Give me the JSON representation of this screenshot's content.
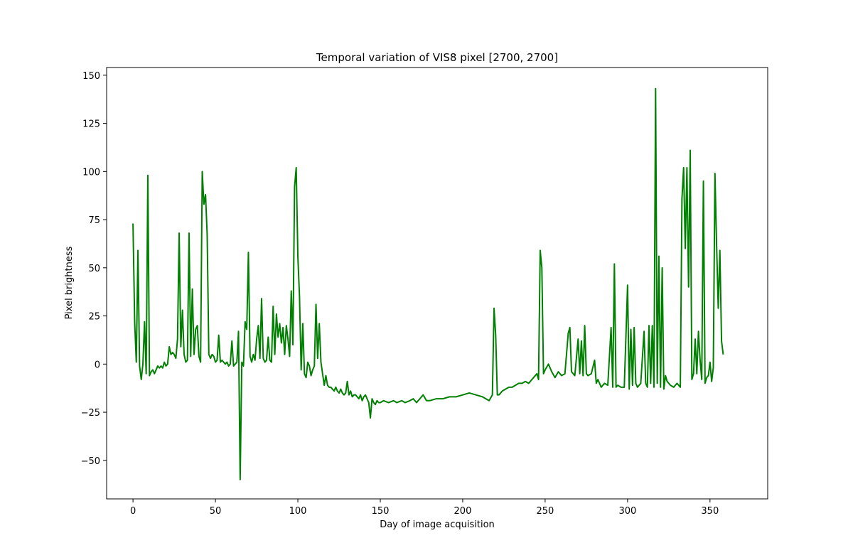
{
  "chart_data": {
    "type": "line",
    "title": "Temporal variation of VIS8 pixel [2700, 2700]",
    "xlabel": "Day of image acquisition",
    "ylabel": "Pixel brightness",
    "xlim": [
      -16,
      385
    ],
    "ylim": [
      -70,
      154
    ],
    "xticks": [
      0,
      50,
      100,
      150,
      200,
      250,
      300,
      350
    ],
    "yticks": [
      -50,
      -25,
      0,
      25,
      50,
      75,
      100,
      125,
      150
    ],
    "grid": false,
    "legend": "none",
    "series": [
      {
        "color": "#008000",
        "points": [
          [
            0,
            73
          ],
          [
            1,
            22
          ],
          [
            2,
            1
          ],
          [
            3,
            59
          ],
          [
            4,
            -1
          ],
          [
            5,
            -8
          ],
          [
            6,
            0
          ],
          [
            7,
            22
          ],
          [
            8,
            -5
          ],
          [
            9,
            98
          ],
          [
            10,
            -6
          ],
          [
            11,
            -4
          ],
          [
            12,
            -3
          ],
          [
            13,
            -5
          ],
          [
            14,
            -3
          ],
          [
            15,
            -1
          ],
          [
            16,
            -2
          ],
          [
            17,
            -1
          ],
          [
            18,
            -2
          ],
          [
            19,
            1
          ],
          [
            20,
            -1
          ],
          [
            21,
            0
          ],
          [
            22,
            9
          ],
          [
            23,
            5
          ],
          [
            24,
            6
          ],
          [
            25,
            5
          ],
          [
            26,
            3
          ],
          [
            27,
            13
          ],
          [
            28,
            68
          ],
          [
            29,
            9
          ],
          [
            30,
            28
          ],
          [
            31,
            5
          ],
          [
            32,
            1
          ],
          [
            33,
            2
          ],
          [
            34,
            68
          ],
          [
            35,
            4
          ],
          [
            36,
            39
          ],
          [
            37,
            5
          ],
          [
            38,
            18
          ],
          [
            39,
            20
          ],
          [
            40,
            4
          ],
          [
            41,
            1
          ],
          [
            42,
            100
          ],
          [
            43,
            83
          ],
          [
            44,
            88
          ],
          [
            45,
            67
          ],
          [
            46,
            5
          ],
          [
            47,
            3
          ],
          [
            48,
            5
          ],
          [
            49,
            4
          ],
          [
            50,
            1
          ],
          [
            51,
            2
          ],
          [
            52,
            15
          ],
          [
            53,
            1
          ],
          [
            54,
            2
          ],
          [
            55,
            1
          ],
          [
            56,
            0
          ],
          [
            57,
            1
          ],
          [
            58,
            -1
          ],
          [
            59,
            0
          ],
          [
            60,
            12
          ],
          [
            61,
            -1
          ],
          [
            62,
            0
          ],
          [
            63,
            1
          ],
          [
            64,
            17
          ],
          [
            65,
            -60
          ],
          [
            66,
            1
          ],
          [
            67,
            -1
          ],
          [
            68,
            22
          ],
          [
            69,
            18
          ],
          [
            70,
            58
          ],
          [
            71,
            4
          ],
          [
            72,
            1
          ],
          [
            73,
            5
          ],
          [
            74,
            2
          ],
          [
            75,
            13
          ],
          [
            76,
            20
          ],
          [
            77,
            3
          ],
          [
            78,
            34
          ],
          [
            79,
            3
          ],
          [
            80,
            1
          ],
          [
            81,
            2
          ],
          [
            82,
            14
          ],
          [
            83,
            2
          ],
          [
            84,
            1
          ],
          [
            85,
            30
          ],
          [
            86,
            5
          ],
          [
            87,
            26
          ],
          [
            88,
            14
          ],
          [
            89,
            21
          ],
          [
            90,
            11
          ],
          [
            91,
            19
          ],
          [
            92,
            5
          ],
          [
            93,
            20
          ],
          [
            94,
            13
          ],
          [
            95,
            4
          ],
          [
            96,
            38
          ],
          [
            97,
            10
          ],
          [
            98,
            92
          ],
          [
            99,
            102
          ],
          [
            100,
            56
          ],
          [
            101,
            35
          ],
          [
            102,
            -3
          ],
          [
            103,
            21
          ],
          [
            104,
            -5
          ],
          [
            105,
            -7
          ],
          [
            106,
            1
          ],
          [
            107,
            -1
          ],
          [
            108,
            -6
          ],
          [
            109,
            -3
          ],
          [
            110,
            -1
          ],
          [
            111,
            31
          ],
          [
            112,
            3
          ],
          [
            113,
            21
          ],
          [
            114,
            1
          ],
          [
            115,
            -5
          ],
          [
            116,
            -11
          ],
          [
            117,
            -6
          ],
          [
            118,
            -11
          ],
          [
            119,
            -12
          ],
          [
            120,
            -12
          ],
          [
            121,
            -13
          ],
          [
            122,
            -14
          ],
          [
            123,
            -12
          ],
          [
            124,
            -14
          ],
          [
            125,
            -15
          ],
          [
            126,
            -13
          ],
          [
            127,
            -15
          ],
          [
            128,
            -16
          ],
          [
            129,
            -15
          ],
          [
            130,
            -9
          ],
          [
            131,
            -16
          ],
          [
            132,
            -14
          ],
          [
            133,
            -17
          ],
          [
            134,
            -16
          ],
          [
            135,
            -16
          ],
          [
            136,
            -17
          ],
          [
            137,
            -18
          ],
          [
            138,
            -16
          ],
          [
            139,
            -19
          ],
          [
            140,
            -17
          ],
          [
            141,
            -16
          ],
          [
            142,
            -18
          ],
          [
            143,
            -20
          ],
          [
            144,
            -28
          ],
          [
            145,
            -18
          ],
          [
            146,
            -20
          ],
          [
            147,
            -21
          ],
          [
            148,
            -19
          ],
          [
            149,
            -20
          ],
          [
            150,
            -20
          ],
          [
            152,
            -19
          ],
          [
            155,
            -20
          ],
          [
            158,
            -19
          ],
          [
            160,
            -20
          ],
          [
            163,
            -19
          ],
          [
            165,
            -20
          ],
          [
            168,
            -19
          ],
          [
            170,
            -18
          ],
          [
            172,
            -20
          ],
          [
            174,
            -18
          ],
          [
            176,
            -16
          ],
          [
            178,
            -19
          ],
          [
            180,
            -19
          ],
          [
            184,
            -18
          ],
          [
            188,
            -18
          ],
          [
            192,
            -17
          ],
          [
            196,
            -17
          ],
          [
            200,
            -16
          ],
          [
            204,
            -15
          ],
          [
            208,
            -16
          ],
          [
            212,
            -17
          ],
          [
            214,
            -18
          ],
          [
            216,
            -19
          ],
          [
            218,
            -16
          ],
          [
            219,
            29
          ],
          [
            220,
            15
          ],
          [
            221,
            -16
          ],
          [
            222,
            -16
          ],
          [
            224,
            -14
          ],
          [
            226,
            -13
          ],
          [
            228,
            -12
          ],
          [
            230,
            -12
          ],
          [
            232,
            -11
          ],
          [
            234,
            -10
          ],
          [
            236,
            -10
          ],
          [
            238,
            -9
          ],
          [
            240,
            -10
          ],
          [
            242,
            -8
          ],
          [
            244,
            -6
          ],
          [
            245,
            -5
          ],
          [
            246,
            -8
          ],
          [
            247,
            59
          ],
          [
            248,
            50
          ],
          [
            249,
            -5
          ],
          [
            250,
            -3
          ],
          [
            252,
            0
          ],
          [
            254,
            -4
          ],
          [
            256,
            -7
          ],
          [
            258,
            -4
          ],
          [
            260,
            -6
          ],
          [
            262,
            -5
          ],
          [
            264,
            16
          ],
          [
            265,
            19
          ],
          [
            266,
            -4
          ],
          [
            268,
            -6
          ],
          [
            270,
            13
          ],
          [
            271,
            -5
          ],
          [
            272,
            12
          ],
          [
            273,
            -6
          ],
          [
            274,
            20
          ],
          [
            275,
            -5
          ],
          [
            276,
            -6
          ],
          [
            278,
            -5
          ],
          [
            280,
            2
          ],
          [
            281,
            -10
          ],
          [
            282,
            -8
          ],
          [
            284,
            -12
          ],
          [
            286,
            -10
          ],
          [
            288,
            -11
          ],
          [
            290,
            19
          ],
          [
            291,
            -12
          ],
          [
            292,
            52
          ],
          [
            293,
            -12
          ],
          [
            294,
            -11
          ],
          [
            296,
            -12
          ],
          [
            298,
            -12
          ],
          [
            300,
            41
          ],
          [
            301,
            -13
          ],
          [
            302,
            18
          ],
          [
            303,
            -11
          ],
          [
            304,
            19
          ],
          [
            305,
            -10
          ],
          [
            306,
            -12
          ],
          [
            308,
            -10
          ],
          [
            310,
            17
          ],
          [
            311,
            -10
          ],
          [
            312,
            -12
          ],
          [
            313,
            20
          ],
          [
            314,
            -10
          ],
          [
            315,
            20
          ],
          [
            316,
            -12
          ],
          [
            317,
            143
          ],
          [
            318,
            -10
          ],
          [
            319,
            56
          ],
          [
            320,
            -12
          ],
          [
            321,
            50
          ],
          [
            322,
            -13
          ],
          [
            323,
            -6
          ],
          [
            324,
            -9
          ],
          [
            326,
            -11
          ],
          [
            328,
            -12
          ],
          [
            330,
            -10
          ],
          [
            332,
            -12
          ],
          [
            333,
            86
          ],
          [
            334,
            102
          ],
          [
            335,
            60
          ],
          [
            336,
            102
          ],
          [
            337,
            40
          ],
          [
            338,
            111
          ],
          [
            339,
            -8
          ],
          [
            340,
            -5
          ],
          [
            341,
            13
          ],
          [
            342,
            -5
          ],
          [
            343,
            17
          ],
          [
            344,
            2
          ],
          [
            345,
            -8
          ],
          [
            346,
            95
          ],
          [
            347,
            -10
          ],
          [
            348,
            -7
          ],
          [
            349,
            -6
          ],
          [
            350,
            1
          ],
          [
            351,
            -9
          ],
          [
            352,
            -2
          ],
          [
            353,
            99
          ],
          [
            354,
            62
          ],
          [
            355,
            29
          ],
          [
            356,
            59
          ],
          [
            357,
            12
          ],
          [
            358,
            5
          ]
        ]
      }
    ]
  }
}
